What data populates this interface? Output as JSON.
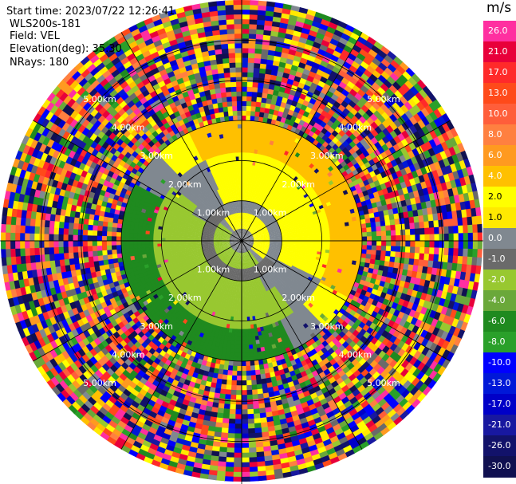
{
  "header": {
    "start_time": "Start time: 2023/07/22 12:26:41",
    "station": "WLS200s-181",
    "field": "Field: VEL",
    "elevation": "Elevation(deg): 35.30",
    "nrays": "NRays: 180"
  },
  "colorbar": {
    "unit": "m/s",
    "entries": [
      {
        "label": "26.0",
        "color": "#ff2fa0"
      },
      {
        "label": "21.0",
        "color": "#e8003a"
      },
      {
        "label": "17.0",
        "color": "#ff2a2a"
      },
      {
        "label": "13.0",
        "color": "#ff4a1a"
      },
      {
        "label": "10.0",
        "color": "#ff5e3a"
      },
      {
        "label": "8.0",
        "color": "#ff8040"
      },
      {
        "label": "6.0",
        "color": "#ff9a20"
      },
      {
        "label": "4.0",
        "color": "#ffc000"
      },
      {
        "label": "2.0",
        "color": "#ffff00"
      },
      {
        "label": "1.0",
        "color": "#ffe900"
      },
      {
        "label": "0.0",
        "color": "#808890"
      },
      {
        "label": "-1.0",
        "color": "#6a6a6a"
      },
      {
        "label": "-2.0",
        "color": "#98c830"
      },
      {
        "label": "-4.0",
        "color": "#6aa83a"
      },
      {
        "label": "-6.0",
        "color": "#1f8a1f"
      },
      {
        "label": "-8.0",
        "color": "#2aa02a"
      },
      {
        "label": "-10.0",
        "color": "#0000ff"
      },
      {
        "label": "-13.0",
        "color": "#0018d8"
      },
      {
        "label": "-17.0",
        "color": "#0000c8"
      },
      {
        "label": "-21.0",
        "color": "#1818a0"
      },
      {
        "label": "-26.0",
        "color": "#12126a"
      },
      {
        "label": "-30.0",
        "color": "#101050"
      }
    ]
  },
  "chart_data": {
    "type": "heatmap",
    "title": "",
    "field": "VEL",
    "units": "m/s",
    "range_ring_labels": [
      "1.00km",
      "2.00km",
      "3.00km",
      "4.00km",
      "5.00km"
    ],
    "range_rings_km": [
      1,
      2,
      3,
      4,
      5
    ],
    "max_range_km": 6.0,
    "azimuth_lines_deg": [
      0,
      30,
      60,
      90,
      120,
      150,
      180,
      210,
      240,
      270,
      300,
      330
    ],
    "ring_label_quadrants": [
      "NW",
      "NE",
      "SW",
      "SE"
    ],
    "rays": 180,
    "velocity_structure": [
      {
        "range_km": [
          0.0,
          0.3
        ],
        "description": "center noise",
        "value": 0.0
      },
      {
        "range_km": [
          0.3,
          0.7
        ],
        "northeast": 2.0,
        "southwest": -2.0
      },
      {
        "range_km": [
          0.7,
          1.0
        ],
        "northeast": 0.0,
        "southwest": -1.0
      },
      {
        "range_km": [
          1.0,
          2.2
        ],
        "northeast": 2.0,
        "southwest": -2.0
      },
      {
        "range_km": [
          2.2,
          3.0
        ],
        "northeast": 4.0,
        "southwest": -6.0
      },
      {
        "range_km": [
          3.0,
          6.0
        ],
        "description": "noise (random all colors)"
      }
    ]
  }
}
